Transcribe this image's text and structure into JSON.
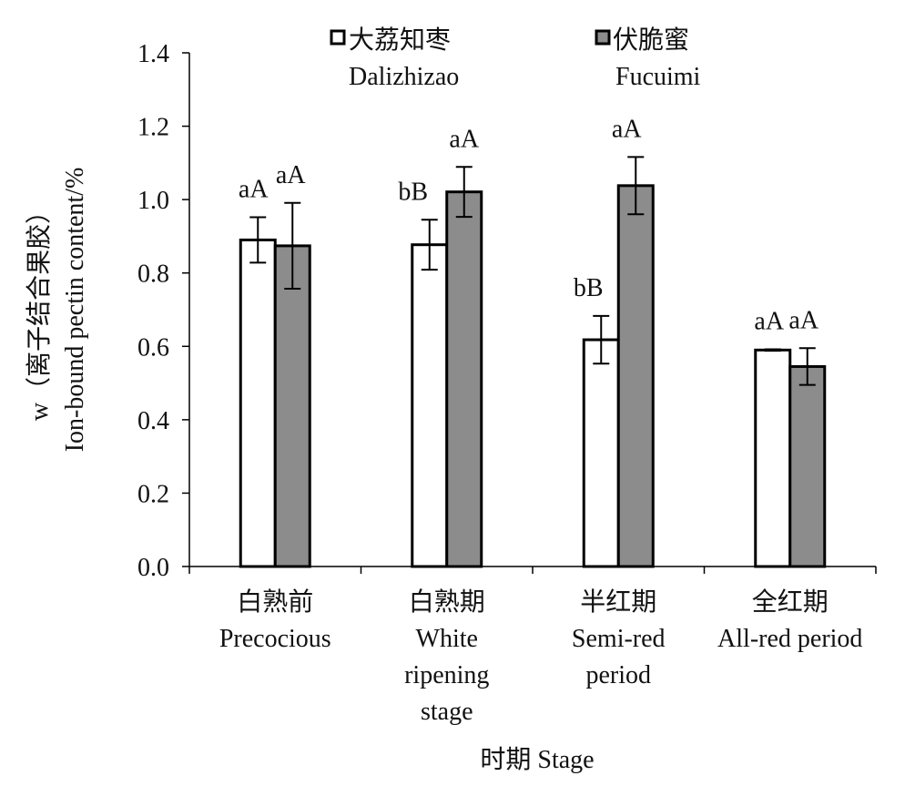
{
  "chart_data": {
    "type": "bar",
    "title": "",
    "ylabel_line1": "w（离子结合果胶）",
    "ylabel_line2": "Ion-bound pectin content/%",
    "xlabel": "时期 Stage",
    "ylim": [
      0,
      1.4
    ],
    "yticks": [
      "0.0",
      "0.2",
      "0.4",
      "0.6",
      "0.8",
      "1.0",
      "1.2",
      "1.4"
    ],
    "grid": false,
    "legend_position": "top",
    "categories": [
      [
        "白熟前",
        "Precocious"
      ],
      [
        "白熟期",
        "White",
        "ripening",
        "stage"
      ],
      [
        "半红期",
        "Semi-red",
        "period"
      ],
      [
        "全红期",
        "All-red period"
      ]
    ],
    "series": [
      {
        "name_cn": "大荔知枣",
        "name_en": "Dalizhizao",
        "color": "#ffffff",
        "values": [
          0.89,
          0.877,
          0.618,
          0.59
        ],
        "errors": [
          0.062,
          0.068,
          0.065,
          0.002
        ],
        "labels": [
          "aA",
          "bB",
          "bB",
          "aA"
        ]
      },
      {
        "name_cn": "伏脆蜜",
        "name_en": "Fucuimi",
        "color": "#8c8c8c",
        "values": [
          0.874,
          1.021,
          1.038,
          0.545
        ],
        "errors": [
          0.117,
          0.068,
          0.078,
          0.05
        ],
        "labels": [
          "aA",
          "aA",
          "aA",
          "aA"
        ]
      }
    ]
  }
}
